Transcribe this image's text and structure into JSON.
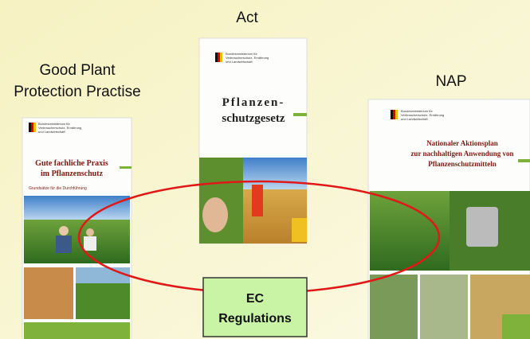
{
  "labels": {
    "good_practice": [
      "Good Plant",
      "Protection Practise"
    ],
    "act": "Act",
    "nap": "NAP",
    "ec": [
      "EC",
      "Regulations"
    ]
  },
  "brochures": {
    "ministry": [
      "Bundesministerium für",
      "Verbraucherschutz, Ernährung",
      "und Landwirtschaft"
    ],
    "left": {
      "title": [
        "Gute fachliche Praxis",
        "im Pflanzenschutz"
      ],
      "subtitle": "Grundsätze für die Durchführung"
    },
    "middle": {
      "title": [
        "Pflanzen-",
        "schutzgesetz"
      ]
    },
    "right": {
      "title": [
        "Nationaler Aktionsplan",
        "zur nachhaltigen Anwendung von",
        "Pflanzenschutzmitteln"
      ]
    }
  }
}
